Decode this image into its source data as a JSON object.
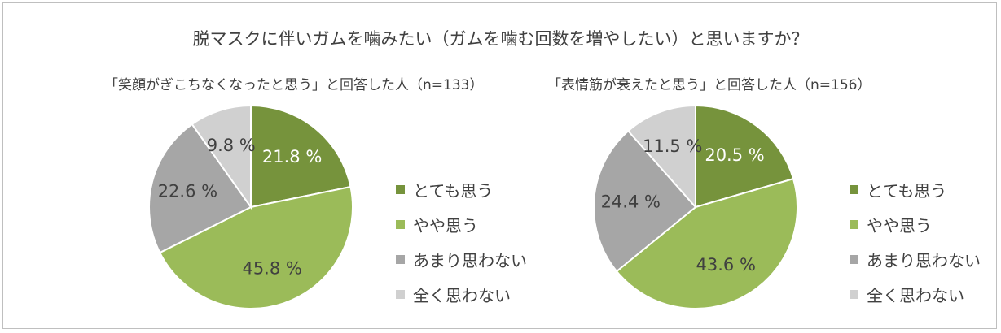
{
  "chart_data": {
    "type": "pie",
    "title": "脱マスクに伴いガムを噛みたい（ガムを噛む回数を増やしたい）と思いますか？",
    "legend_position": "right",
    "categories": [
      "とても思う",
      "やや思う",
      "あまり思わない",
      "全く思わない"
    ],
    "colors": [
      "#76933c",
      "#9bbb59",
      "#a6a6a6",
      "#d0d0d0"
    ],
    "label_colors": [
      "#ffffff",
      "#404040",
      "#404040",
      "#404040"
    ],
    "pies": [
      {
        "title": "「笑顔がぎこちなくなったと思う」と回答した人（n=133）",
        "values": [
          21.8,
          45.8,
          22.6,
          9.8
        ],
        "labels": [
          "21.8 %",
          "45.8 %",
          "22.6 %",
          "9.8 %"
        ]
      },
      {
        "title": "「表情筋が衰えたと思う」と回答した人（n=156）",
        "values": [
          20.5,
          43.6,
          24.4,
          11.5
        ],
        "labels": [
          "20.5 %",
          "43.6 %",
          "24.4 %",
          "11.5 %"
        ]
      }
    ]
  }
}
